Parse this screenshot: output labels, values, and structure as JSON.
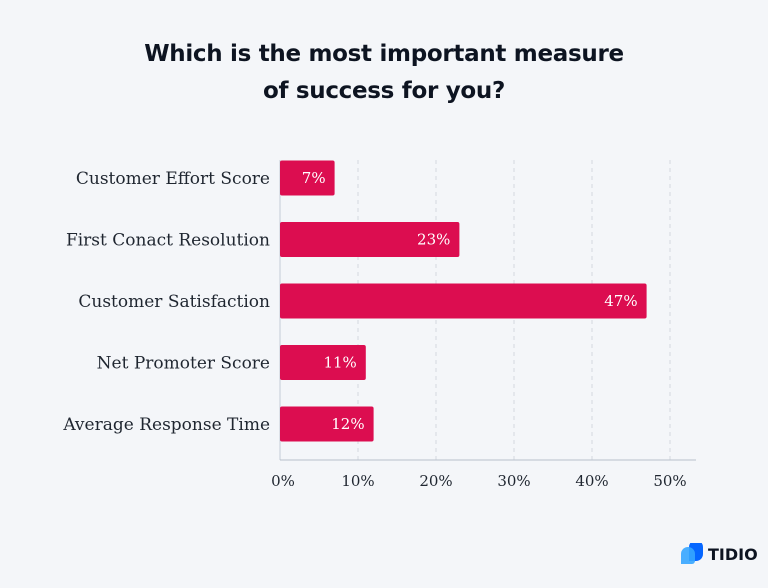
{
  "chart_data": {
    "type": "bar",
    "orientation": "horizontal",
    "title": "Which is the most important measure of success for you?",
    "title_lines": [
      "Which is the most important measure",
      "of success for you?"
    ],
    "categories": [
      "Customer Effort Score",
      "First Conact Resolution",
      "Customer Satisfaction",
      "Net Promoter Score",
      "Average Response Time"
    ],
    "values": [
      7,
      23,
      47,
      11,
      12
    ],
    "data_labels": [
      "7%",
      "23%",
      "47%",
      "11%",
      "12%"
    ],
    "xlim": [
      0,
      50
    ],
    "xticks": [
      0,
      10,
      20,
      30,
      40,
      50
    ],
    "xtick_labels": [
      "0%",
      "10%",
      "20%",
      "30%",
      "40%",
      "50%"
    ],
    "xlabel": "",
    "ylabel": "",
    "grid": "vertical dashed",
    "bar_color": "#dc0d50"
  },
  "brand": {
    "name": "TIDIO",
    "colors": [
      "#0566ff",
      "#36a6ff"
    ]
  }
}
